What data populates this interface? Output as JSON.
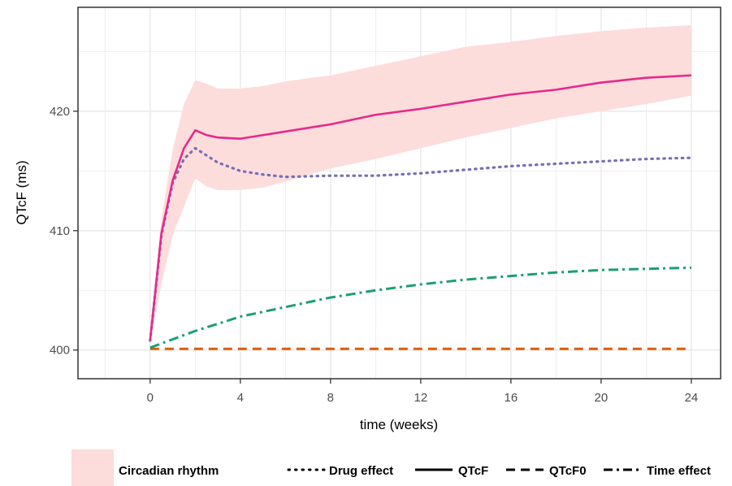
{
  "chart_data": {
    "type": "line",
    "xlabel": "time (weeks)",
    "ylabel": "QTcF (ms)",
    "xlim": [
      -3.2,
      25.3
    ],
    "ylim": [
      397.6,
      428.7
    ],
    "x_ticks": [
      0,
      4,
      8,
      12,
      16,
      20,
      24
    ],
    "y_ticks": [
      400,
      410,
      420
    ],
    "grid": true,
    "legend_position": "bottom",
    "colors": {
      "qtcf": "#e7298a",
      "drug": "#7570b3",
      "time": "#1b9e77",
      "qtcf0": "#d95f02",
      "band": "#fddcdc"
    },
    "band": {
      "name": "Circadian rhythm",
      "x": [
        0,
        0.5,
        1,
        1.5,
        2,
        2.5,
        3,
        4,
        5,
        6,
        8,
        10,
        12,
        14,
        16,
        18,
        20,
        22,
        24
      ],
      "lower": [
        400.6,
        405.5,
        409.6,
        412.0,
        414.4,
        413.7,
        413.4,
        413.4,
        413.6,
        414.1,
        415.2,
        416.0,
        416.9,
        417.8,
        418.6,
        419.4,
        420.0,
        420.6,
        421.3
      ],
      "upper": [
        401.0,
        411.0,
        416.8,
        420.6,
        422.6,
        422.3,
        421.9,
        421.9,
        422.1,
        422.5,
        423.0,
        423.8,
        424.6,
        425.4,
        425.8,
        426.3,
        426.7,
        427.0,
        427.2
      ]
    },
    "series": [
      {
        "name": "QTcF",
        "style": "solid",
        "x": [
          0,
          0.5,
          1,
          1.5,
          2,
          2.5,
          3,
          4,
          5,
          6,
          8,
          10,
          12,
          14,
          16,
          18,
          20,
          22,
          24
        ],
        "y": [
          400.8,
          409.8,
          414.2,
          416.9,
          418.4,
          418.0,
          417.8,
          417.7,
          418.0,
          418.3,
          418.9,
          419.7,
          420.2,
          420.8,
          421.4,
          421.8,
          422.4,
          422.8,
          423.0
        ]
      },
      {
        "name": "Drug effect",
        "style": "dotted",
        "x": [
          0,
          0.5,
          1,
          1.5,
          2,
          2.5,
          3,
          4,
          5,
          6,
          8,
          10,
          12,
          14,
          16,
          18,
          20,
          22,
          24
        ],
        "y": [
          400.8,
          409.6,
          414.0,
          416.0,
          416.9,
          416.3,
          415.7,
          415.0,
          414.7,
          414.5,
          414.6,
          414.6,
          414.8,
          415.1,
          415.4,
          415.6,
          415.8,
          416.0,
          416.1
        ]
      },
      {
        "name": "Time effect",
        "style": "dashdot",
        "x": [
          0,
          1,
          2,
          3,
          4,
          6,
          8,
          10,
          12,
          14,
          16,
          18,
          20,
          22,
          24
        ],
        "y": [
          400.2,
          400.9,
          401.6,
          402.2,
          402.8,
          403.6,
          404.4,
          405.0,
          405.5,
          405.9,
          406.2,
          406.5,
          406.7,
          406.8,
          406.9
        ]
      },
      {
        "name": "QTcF0",
        "style": "dashed",
        "x": [
          0,
          24
        ],
        "y": [
          400.1,
          400.1
        ]
      }
    ]
  }
}
